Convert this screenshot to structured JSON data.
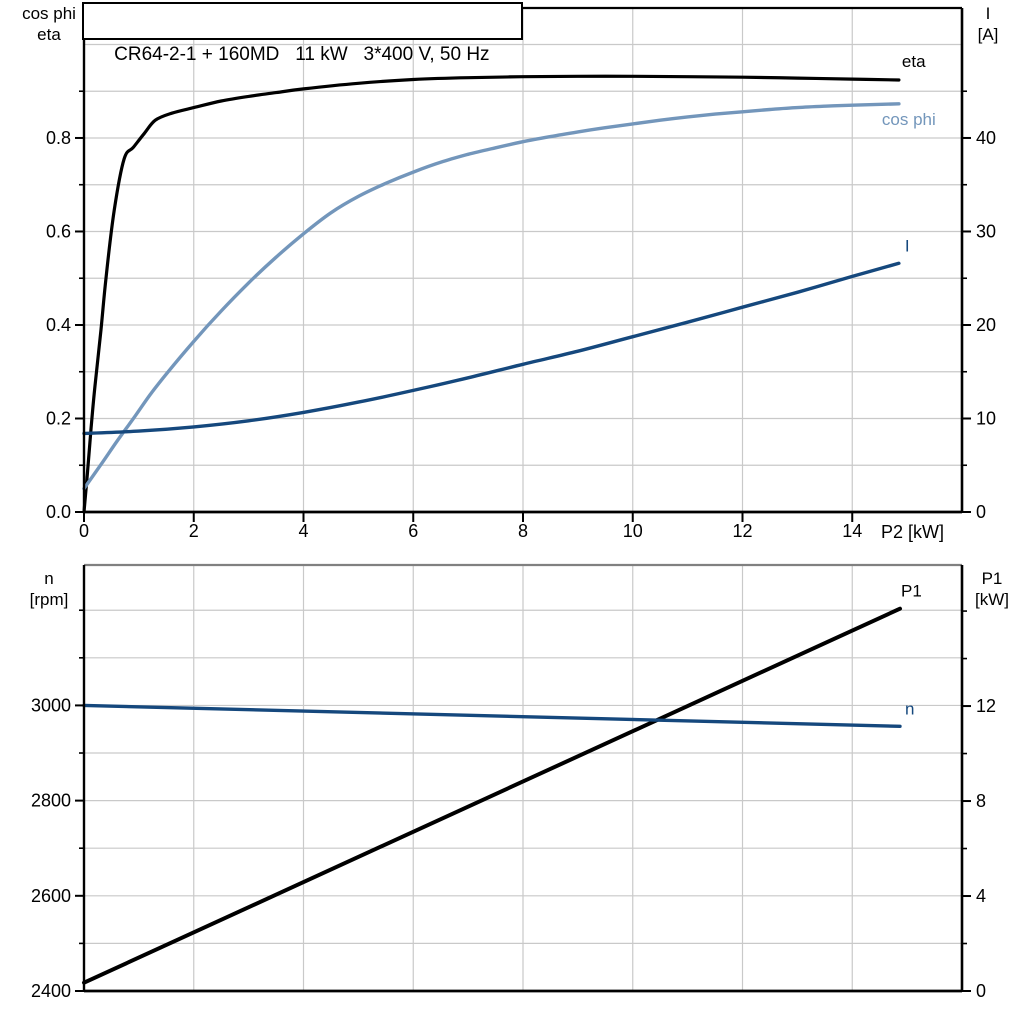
{
  "title_box": {
    "text": "CR64-2-1 + 160MD   11 kW   3*400 V, 50 Hz"
  },
  "colors": {
    "black_curve": "#000000",
    "cos_phi_curve": "#7396bb",
    "dark_blue_curve": "#15487d",
    "grid": "#c9c9c9",
    "axis": "#000000",
    "bottom_chart_top_border": "#808080",
    "background": "#ffffff"
  },
  "chart_data": [
    {
      "type": "line",
      "name": "motor-efficiency-cosphi-current",
      "grid": "on",
      "x_axis": {
        "label": "P2 [kW]",
        "range": [
          0,
          16
        ],
        "tick_values": [
          0,
          2,
          4,
          6,
          8,
          10,
          12,
          14
        ],
        "tick_labels": [
          "0",
          "2",
          "4",
          "6",
          "8",
          "10",
          "12",
          "14"
        ],
        "grid_values": [
          2,
          4,
          6,
          8,
          10,
          12,
          14
        ]
      },
      "left_axis": {
        "label_lines": [
          "cos phi",
          "eta"
        ],
        "range": [
          0,
          1.078
        ],
        "tick_values": [
          0.8,
          0.6,
          0.4,
          0.2,
          0.0
        ],
        "tick_labels": [
          "0.8",
          "0.6",
          "0.4",
          "0.2",
          "0.0"
        ],
        "minor_values": [
          0.1,
          0.3,
          0.5,
          0.7,
          0.9
        ],
        "grid_values": [
          0.1,
          0.2,
          0.3,
          0.4,
          0.5,
          0.6,
          0.7,
          0.8,
          0.9,
          1.0
        ]
      },
      "right_axis": {
        "label_lines": [
          "I",
          "[A]"
        ],
        "range": [
          0,
          53.9
        ],
        "tick_values": [
          40,
          30,
          20,
          10,
          0
        ],
        "tick_labels": [
          "40",
          "30",
          "20",
          "10",
          "0"
        ],
        "minor_values": [
          5,
          15,
          25,
          35,
          45
        ]
      },
      "series": [
        {
          "name": "eta",
          "label": "eta",
          "axis": "left",
          "color_key": "black_curve",
          "width": 3.2,
          "label_dx": 3,
          "label_dy": -13,
          "points": [
            [
              0,
              0
            ],
            [
              0.06,
              0.08
            ],
            [
              0.13,
              0.18
            ],
            [
              0.2,
              0.27
            ],
            [
              0.31,
              0.39
            ],
            [
              0.4,
              0.5
            ],
            [
              0.55,
              0.645
            ],
            [
              0.73,
              0.755
            ],
            [
              0.9,
              0.78
            ],
            [
              1.1,
              0.81
            ],
            [
              1.3,
              0.838
            ],
            [
              1.6,
              0.853
            ],
            [
              2,
              0.865
            ],
            [
              2.5,
              0.879
            ],
            [
              3,
              0.889
            ],
            [
              3.5,
              0.897
            ],
            [
              4,
              0.905
            ],
            [
              5,
              0.917
            ],
            [
              6,
              0.925
            ],
            [
              7,
              0.929
            ],
            [
              8,
              0.931
            ],
            [
              9,
              0.932
            ],
            [
              10,
              0.932
            ],
            [
              11,
              0.931
            ],
            [
              12,
              0.93
            ],
            [
              13,
              0.928
            ],
            [
              14,
              0.926
            ],
            [
              14.85,
              0.924
            ]
          ]
        },
        {
          "name": "cos-phi",
          "label": "cos phi",
          "axis": "left",
          "color_key": "cos_phi_curve",
          "width": 3.4,
          "label_dx": -17,
          "label_dy": 21,
          "points": [
            [
              0,
              0.05
            ],
            [
              0.3,
              0.1
            ],
            [
              0.6,
              0.151
            ],
            [
              0.9,
              0.2
            ],
            [
              1.2,
              0.25
            ],
            [
              1.5,
              0.295
            ],
            [
              2,
              0.365
            ],
            [
              2.5,
              0.43
            ],
            [
              3,
              0.49
            ],
            [
              3.5,
              0.545
            ],
            [
              4,
              0.595
            ],
            [
              4.5,
              0.64
            ],
            [
              5,
              0.675
            ],
            [
              5.5,
              0.703
            ],
            [
              6,
              0.727
            ],
            [
              6.5,
              0.748
            ],
            [
              7,
              0.765
            ],
            [
              7.5,
              0.779
            ],
            [
              8,
              0.792
            ],
            [
              8.5,
              0.803
            ],
            [
              9,
              0.813
            ],
            [
              9.5,
              0.822
            ],
            [
              10,
              0.83
            ],
            [
              10.5,
              0.838
            ],
            [
              11,
              0.845
            ],
            [
              11.5,
              0.851
            ],
            [
              12,
              0.856
            ],
            [
              12.5,
              0.861
            ],
            [
              13,
              0.865
            ],
            [
              13.5,
              0.868
            ],
            [
              14,
              0.87
            ],
            [
              14.85,
              0.873
            ]
          ]
        },
        {
          "name": "current",
          "label": "I",
          "axis": "right",
          "color_key": "dark_blue_curve",
          "width": 3.4,
          "label_dx": 6,
          "label_dy": -12,
          "points": [
            [
              0,
              8.4
            ],
            [
              1,
              8.65
            ],
            [
              2,
              9.1
            ],
            [
              3,
              9.75
            ],
            [
              4,
              10.65
            ],
            [
              5,
              11.75
            ],
            [
              6,
              13
            ],
            [
              7,
              14.35
            ],
            [
              8,
              15.8
            ],
            [
              9,
              17.2
            ],
            [
              10,
              18.75
            ],
            [
              11,
              20.3
            ],
            [
              12,
              21.9
            ],
            [
              13,
              23.5
            ],
            [
              14,
              25.2
            ],
            [
              14.85,
              26.6
            ]
          ]
        }
      ]
    },
    {
      "type": "line",
      "name": "speed-input-power",
      "grid": "on",
      "x_axis": {
        "label": "",
        "range": [
          0,
          16
        ],
        "tick_values": [],
        "tick_labels": [],
        "grid_values": [
          2,
          4,
          6,
          8,
          10,
          12,
          14
        ]
      },
      "left_axis": {
        "label_lines": [
          "n",
          "[rpm]"
        ],
        "range": [
          2400,
          3295
        ],
        "tick_values": [
          3000,
          2800,
          2600,
          2400
        ],
        "tick_labels": [
          "3000",
          "2800",
          "2600",
          "2400"
        ],
        "minor_values": [
          2500,
          2700,
          2900,
          3100,
          3200
        ],
        "grid_values": [
          2500,
          2600,
          2700,
          2800,
          2900,
          3000,
          3100,
          3200
        ]
      },
      "right_axis": {
        "label_lines": [
          "P1",
          "[kW]"
        ],
        "range": [
          0,
          17.94
        ],
        "tick_values": [
          12,
          8,
          4,
          0
        ],
        "tick_labels": [
          "12",
          "8",
          "4",
          "0"
        ],
        "minor_values": [
          2,
          6,
          10,
          14,
          16
        ]
      },
      "series": [
        {
          "name": "p1",
          "label": "P1",
          "axis": "right",
          "color_key": "black_curve",
          "width": 4,
          "label_dx": 1,
          "label_dy": -12,
          "points": [
            [
              0,
              0.35
            ],
            [
              14.87,
              16.1
            ]
          ]
        },
        {
          "name": "n",
          "label": "n",
          "axis": "left",
          "color_key": "dark_blue_curve",
          "width": 3.4,
          "label_dx": 5,
          "label_dy": -12,
          "points": [
            [
              0,
              3000
            ],
            [
              14.87,
              2956
            ]
          ]
        }
      ]
    }
  ]
}
